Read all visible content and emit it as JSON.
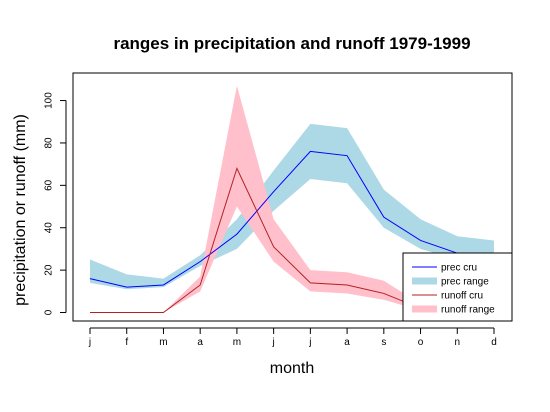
{
  "chart_data": {
    "type": "line",
    "title": "ranges in precipitation and runoff 1979-1999",
    "xlabel": "month",
    "ylabel": "precipitation or runoff (mm)",
    "categories": [
      "j",
      "f",
      "m",
      "a",
      "m",
      "j",
      "j",
      "a",
      "s",
      "o",
      "n",
      "d"
    ],
    "yticks": [
      0,
      20,
      40,
      60,
      80,
      100
    ],
    "ylim": [
      -4,
      113
    ],
    "legend_position": "bottom-right",
    "series": [
      {
        "name": "prec cru",
        "kind": "line",
        "color": "#0000ff",
        "values": [
          16,
          12,
          13,
          24,
          37,
          57,
          76,
          74,
          45,
          34,
          28,
          25
        ]
      },
      {
        "name": "prec range",
        "kind": "band",
        "color": "#add8e6",
        "lower": [
          14,
          11,
          12,
          22,
          30,
          48,
          63,
          61,
          40,
          30,
          25,
          22
        ],
        "upper": [
          25,
          18,
          16,
          27,
          44,
          67,
          89,
          87,
          58,
          44,
          36,
          34
        ]
      },
      {
        "name": "runoff cru",
        "kind": "line",
        "color": "#b22222",
        "values": [
          0,
          0,
          0,
          13,
          68,
          31,
          14,
          13,
          9,
          2,
          1,
          1
        ]
      },
      {
        "name": "runoff range",
        "kind": "band",
        "color": "#ffc0cb",
        "lower": [
          0,
          0,
          0,
          10,
          50,
          24,
          10,
          9,
          6,
          1,
          1,
          1
        ],
        "upper": [
          0,
          0,
          0,
          17,
          107,
          44,
          20,
          19,
          15,
          4,
          2,
          2
        ]
      }
    ]
  }
}
